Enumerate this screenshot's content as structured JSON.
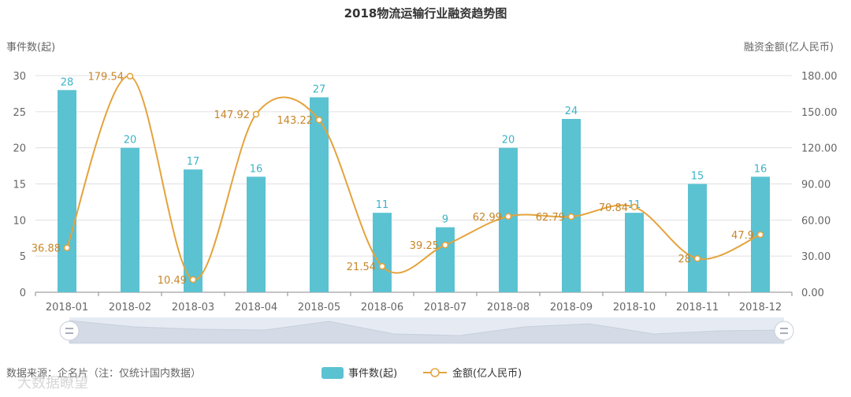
{
  "chart_data": {
    "type": "bar+line",
    "title": "2018物流运输行业融资趋势图",
    "categories": [
      "2018-01",
      "2018-02",
      "2018-03",
      "2018-04",
      "2018-05",
      "2018-06",
      "2018-07",
      "2018-08",
      "2018-09",
      "2018-10",
      "2018-11",
      "2018-12"
    ],
    "series": [
      {
        "name": "事件数(起)",
        "type": "bar",
        "axis": "left",
        "color": "#5bc2d2",
        "values": [
          28,
          20,
          17,
          16,
          27,
          11,
          9,
          20,
          24,
          11,
          15,
          16
        ]
      },
      {
        "name": "金额(亿人民币)",
        "type": "line",
        "axis": "right",
        "color": "#e4a33c",
        "values": [
          36.88,
          179.54,
          10.49,
          147.92,
          143.22,
          21.54,
          39.25,
          62.99,
          62.79,
          70.84,
          28,
          47.9
        ]
      }
    ],
    "left_axis": {
      "label": "事件数(起)",
      "range": [
        0,
        30
      ],
      "ticks": [
        0,
        5,
        10,
        15,
        20,
        25,
        30
      ]
    },
    "right_axis": {
      "label": "融资金额(亿人民币)",
      "range": [
        0,
        180
      ],
      "ticks": [
        "0.00",
        "30.00",
        "60.00",
        "90.00",
        "120.00",
        "150.00",
        "180.00"
      ]
    },
    "grid": true,
    "legend_position": "bottom-center",
    "source_note": "数据来源：企名片（注：仅统计国内数据）",
    "watermark": "大数据瞭望"
  }
}
